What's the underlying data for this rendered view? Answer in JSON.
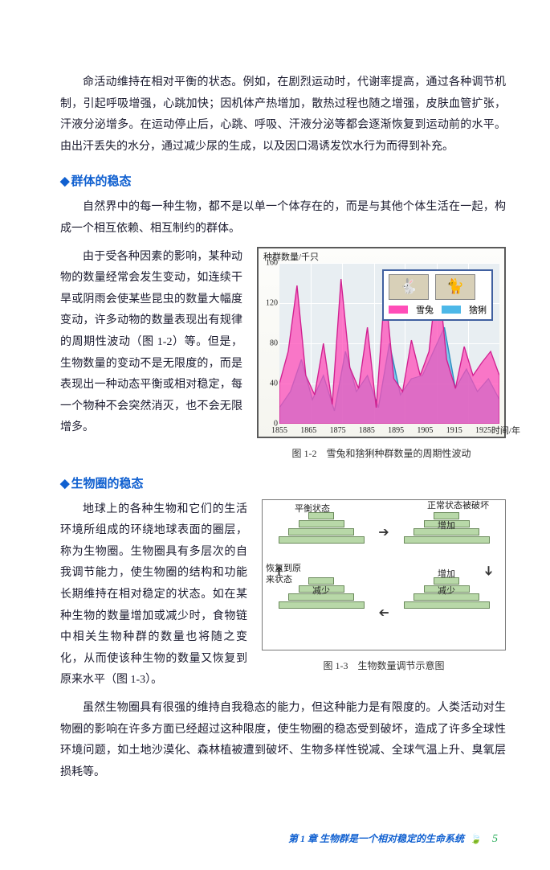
{
  "intro_para": "命活动维持在相对平衡的状态。例如，在剧烈运动时，代谢率提高，通过各种调节机制，引起呼吸增强，心跳加快；因机体产热增加，散热过程也随之增强，皮肤血管扩张，汗液分泌增多。在运动停止后，心跳、呼吸、汗液分泌等都会逐渐恢复到运动前的水平。由出汗丢失的水分，通过减少尿的生成，以及因口渴诱发饮水行为而得到补充。",
  "heading1": "群体的稳态",
  "group_para1": "自然界中的每一种生物，都不是以单一个体存在的，而是与其他个体生活在一起，构成一个相互依赖、相互制约的群体。",
  "group_para2": "由于受各种因素的影响，某种动物的数量经常会发生变动，如连续干旱或阴雨会使某些昆虫的数量大幅度变动，许多动物的数量表现出有规律的周期性波动（图 1-2）等。但是，生物数量的变动不是无限度的，而是表现出一种动态平衡或相对稳定，每一个物种不会突然消灭，也不会无限增多。",
  "chart": {
    "y_label": "种群数量/千只",
    "x_label": "时间/年",
    "y_ticks": [
      "160",
      "120",
      "80",
      "40",
      "0"
    ],
    "x_ticks": [
      "1855",
      "1865",
      "1875",
      "1885",
      "1895",
      "1905",
      "1915",
      "1925"
    ],
    "legend": {
      "a": "雪兔",
      "b": "猞猁"
    },
    "series_hare": {
      "color": "#ff4db8",
      "points_pct": [
        [
          0,
          75
        ],
        [
          4,
          55
        ],
        [
          8,
          14
        ],
        [
          12,
          70
        ],
        [
          16,
          82
        ],
        [
          20,
          50
        ],
        [
          24,
          88
        ],
        [
          28,
          10
        ],
        [
          32,
          65
        ],
        [
          36,
          78
        ],
        [
          40,
          40
        ],
        [
          44,
          90
        ],
        [
          48,
          15
        ],
        [
          52,
          72
        ],
        [
          56,
          80
        ],
        [
          60,
          48
        ],
        [
          64,
          70
        ],
        [
          68,
          55
        ],
        [
          72,
          5
        ],
        [
          76,
          60
        ],
        [
          80,
          78
        ],
        [
          84,
          52
        ],
        [
          88,
          70
        ],
        [
          92,
          62
        ],
        [
          96,
          55
        ],
        [
          100,
          70
        ]
      ]
    },
    "series_lynx": {
      "color": "#4db8e8",
      "points_pct": [
        [
          0,
          90
        ],
        [
          5,
          80
        ],
        [
          10,
          60
        ],
        [
          15,
          85
        ],
        [
          20,
          70
        ],
        [
          25,
          92
        ],
        [
          30,
          55
        ],
        [
          35,
          80
        ],
        [
          40,
          70
        ],
        [
          45,
          90
        ],
        [
          50,
          50
        ],
        [
          55,
          82
        ],
        [
          60,
          72
        ],
        [
          65,
          70
        ],
        [
          70,
          55
        ],
        [
          75,
          40
        ],
        [
          80,
          78
        ],
        [
          85,
          66
        ],
        [
          90,
          80
        ],
        [
          95,
          72
        ],
        [
          100,
          85
        ]
      ]
    },
    "caption": "图 1-2　雪兔和猞猁种群数量的周期性波动"
  },
  "heading2": "生物圈的稳态",
  "bio_para1": "地球上的各种生物和它们的生活环境所组成的环绕地球表面的圈层，称为生物圈。生物圈具有多层次的自我调节能力，使生物圈的结构和功能长期维持在相对稳定的状态。如在某种生物的数量增加或减少时，食物链中相关生物种群的数量也将随之变化，从而使该种生物的数量又恢复到原来水平（图 1-3）。",
  "diagram": {
    "top_left": "平衡状态",
    "top_right": "正常状态被破坏",
    "right_a": "增加",
    "right_b": "增加",
    "left_side_a": "恢复到原",
    "left_side_b": "来状态",
    "bottom_left": "减少",
    "bottom_right": "减少",
    "caption": "图 1-3　生物数量调节示意图"
  },
  "bio_para2": "虽然生物圈具有很强的维持自我稳态的能力，但这种能力是有限度的。人类活动对生物圈的影响在许多方面已经超过这种限度，使生物圈的稳态受到破坏，造成了许多全球性环境问题，如土地沙漠化、森林植被遭到破坏、生物多样性锐减、全球气温上升、臭氧层损耗等。",
  "footer": {
    "chapter": "第 1 章",
    "title": "生物群是一个相对稳定的生命系统",
    "page": "5"
  }
}
